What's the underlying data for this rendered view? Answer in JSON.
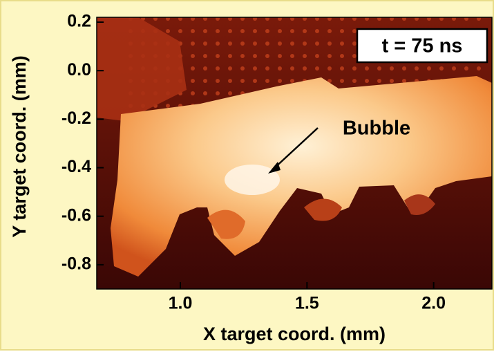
{
  "chart_data": {
    "type": "image",
    "xlabel": "X target coord. (mm)",
    "ylabel": "Y target coord. (mm)",
    "annotations": [
      "t = 75 ns",
      "Bubble"
    ],
    "xlim": [
      0.67,
      2.23
    ],
    "ylim": [
      -0.9,
      0.22
    ],
    "xticks": [
      {
        "value": 1,
        "label": "1.0"
      },
      {
        "value": 1.5,
        "label": "1.5"
      },
      {
        "value": 2,
        "label": "2.0"
      }
    ],
    "yticks": [
      0.2,
      {
        "value": 0,
        "label": "0.0"
      },
      -0.2,
      -0.4,
      -0.6,
      -0.8
    ]
  }
}
